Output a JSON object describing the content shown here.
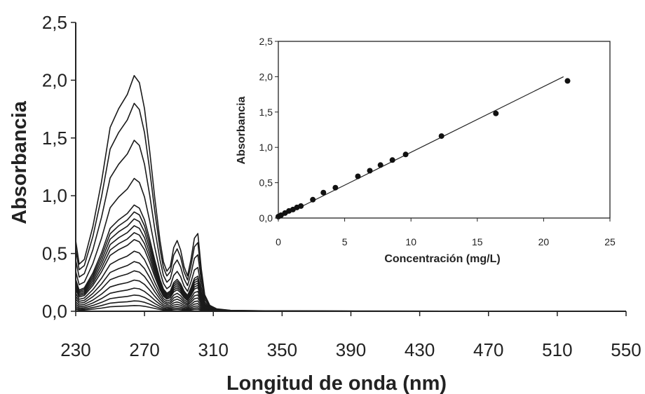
{
  "chart_data": [
    {
      "type": "line",
      "xlabel": "Longitud de onda (nm)",
      "ylabel": "Absorbancia",
      "xlim": [
        230,
        550
      ],
      "ylim": [
        0,
        2.5
      ],
      "x_ticks": [
        "230",
        "270",
        "310",
        "350",
        "390",
        "430",
        "470",
        "510",
        "550"
      ],
      "y_ticks": [
        "0,0",
        "0,5",
        "1,0",
        "1,5",
        "2,0",
        "2,5"
      ],
      "grid": false,
      "x": [
        230,
        232,
        235,
        240,
        245,
        250,
        255,
        260,
        264,
        267,
        270,
        273,
        276,
        279,
        281,
        283,
        285,
        287,
        289,
        291,
        293,
        295,
        297,
        299,
        301,
        303,
        305,
        308,
        312,
        320,
        340,
        400,
        550
      ],
      "shape_reference": [
        0.3,
        0.2,
        0.22,
        0.36,
        0.55,
        0.78,
        0.86,
        0.92,
        1.0,
        0.97,
        0.86,
        0.68,
        0.48,
        0.3,
        0.21,
        0.17,
        0.19,
        0.27,
        0.3,
        0.26,
        0.19,
        0.15,
        0.22,
        0.31,
        0.33,
        0.18,
        0.07,
        0.025,
        0.01,
        0.004,
        0.002,
        0.001,
        0.0
      ],
      "series": [
        {
          "peak_absorbance": 2.04
        },
        {
          "peak_absorbance": 1.8
        },
        {
          "peak_absorbance": 1.48
        },
        {
          "peak_absorbance": 1.15
        },
        {
          "peak_absorbance": 0.92
        },
        {
          "peak_absorbance": 0.86
        },
        {
          "peak_absorbance": 0.8
        },
        {
          "peak_absorbance": 0.74
        },
        {
          "peak_absorbance": 0.68
        },
        {
          "peak_absorbance": 0.62
        },
        {
          "peak_absorbance": 0.52
        },
        {
          "peak_absorbance": 0.43
        },
        {
          "peak_absorbance": 0.35
        },
        {
          "peak_absorbance": 0.27
        },
        {
          "peak_absorbance": 0.2
        },
        {
          "peak_absorbance": 0.14
        },
        {
          "peak_absorbance": 0.09
        },
        {
          "peak_absorbance": 0.05
        }
      ]
    },
    {
      "type": "scatter",
      "xlabel": "Concentración (mg/L)",
      "ylabel": "Absorbancia",
      "xlim": [
        0,
        25
      ],
      "ylim": [
        0,
        2.5
      ],
      "x_ticks": [
        "0",
        "5",
        "10",
        "15",
        "20",
        "25"
      ],
      "y_ticks": [
        "0,0",
        "0,5",
        "1,0",
        "1,5",
        "2,0",
        "2,5"
      ],
      "grid": false,
      "points": [
        {
          "x": 0.0,
          "y": 0.02
        },
        {
          "x": 0.2,
          "y": 0.04
        },
        {
          "x": 0.5,
          "y": 0.07
        },
        {
          "x": 0.8,
          "y": 0.1
        },
        {
          "x": 1.1,
          "y": 0.12
        },
        {
          "x": 1.4,
          "y": 0.15
        },
        {
          "x": 1.7,
          "y": 0.17
        },
        {
          "x": 2.6,
          "y": 0.26
        },
        {
          "x": 3.4,
          "y": 0.36
        },
        {
          "x": 4.3,
          "y": 0.43
        },
        {
          "x": 6.0,
          "y": 0.59
        },
        {
          "x": 6.9,
          "y": 0.67
        },
        {
          "x": 7.7,
          "y": 0.75
        },
        {
          "x": 8.6,
          "y": 0.82
        },
        {
          "x": 9.6,
          "y": 0.9
        },
        {
          "x": 12.3,
          "y": 1.16
        },
        {
          "x": 16.4,
          "y": 1.48
        },
        {
          "x": 21.8,
          "y": 1.94
        }
      ],
      "fit_line": {
        "x": [
          0,
          21.5
        ],
        "y": [
          0.0,
          2.0
        ]
      }
    }
  ]
}
